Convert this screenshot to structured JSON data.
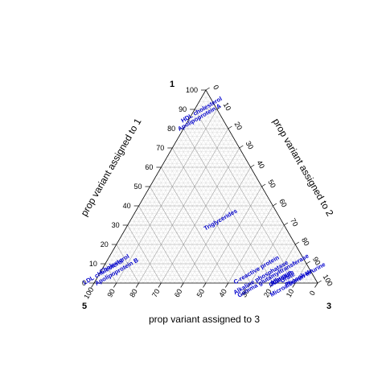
{
  "chart_data": {
    "type": "ternary",
    "title": "",
    "corners": {
      "top": "1",
      "left": "5",
      "right": "3"
    },
    "axes": {
      "left": {
        "label": "prop variant assigned to 1",
        "ticks": [
          "0",
          "10",
          "20",
          "30",
          "40",
          "50",
          "60",
          "70",
          "80",
          "90",
          "100"
        ]
      },
      "right": {
        "label": "prop variant assigned to 2",
        "ticks": [
          "0",
          "10",
          "20",
          "30",
          "40",
          "50",
          "60",
          "70",
          "80",
          "90",
          "100"
        ]
      },
      "bottom": {
        "label": "prop variant assigned to 3",
        "ticks": [
          "100",
          "90",
          "80",
          "70",
          "60",
          "50",
          "40",
          "30",
          "20",
          "10",
          "0"
        ]
      }
    },
    "grid": true,
    "label_color": "#0000cc",
    "points": [
      {
        "label": "HDL cholesterol",
        "p1": 89,
        "p2": 4,
        "p3": 7
      },
      {
        "label": "Apolipoprotein A",
        "p1": 85,
        "p2": 5,
        "p3": 10
      },
      {
        "label": "Triglycerides",
        "p1": 32,
        "p2": 41,
        "p3": 27
      },
      {
        "label": "Cholesterol",
        "p1": 9,
        "p2": 5,
        "p3": 86
      },
      {
        "label": "LDL cholesterol",
        "p1": 5,
        "p2": 2,
        "p3": 93
      },
      {
        "label": "Apolipoprotein B",
        "p1": 5,
        "p2": 8,
        "p3": 87
      },
      {
        "label": "C-reactive protein",
        "p1": 6,
        "p2": 70,
        "p3": 24
      },
      {
        "label": "Alkaline phosphatase",
        "p1": 2,
        "p2": 74,
        "p3": 24
      },
      {
        "label": "Gamma glutamyltransferase",
        "p1": 3,
        "p2": 79,
        "p3": 18
      },
      {
        "label": "Calcium",
        "p1": 2,
        "p2": 84,
        "p3": 14
      },
      {
        "label": "Albumin",
        "p1": 2,
        "p2": 83,
        "p3": 15
      },
      {
        "label": "Glucose",
        "p1": 1,
        "p2": 83,
        "p3": 16
      },
      {
        "label": "Urate",
        "p1": 2,
        "p2": 86,
        "p3": 12
      },
      {
        "label": "Phosphate",
        "p1": 2,
        "p2": 91,
        "p3": 7
      },
      {
        "label": "Microalbumin in urine",
        "p1": 1,
        "p2": 91,
        "p3": 8
      }
    ]
  }
}
